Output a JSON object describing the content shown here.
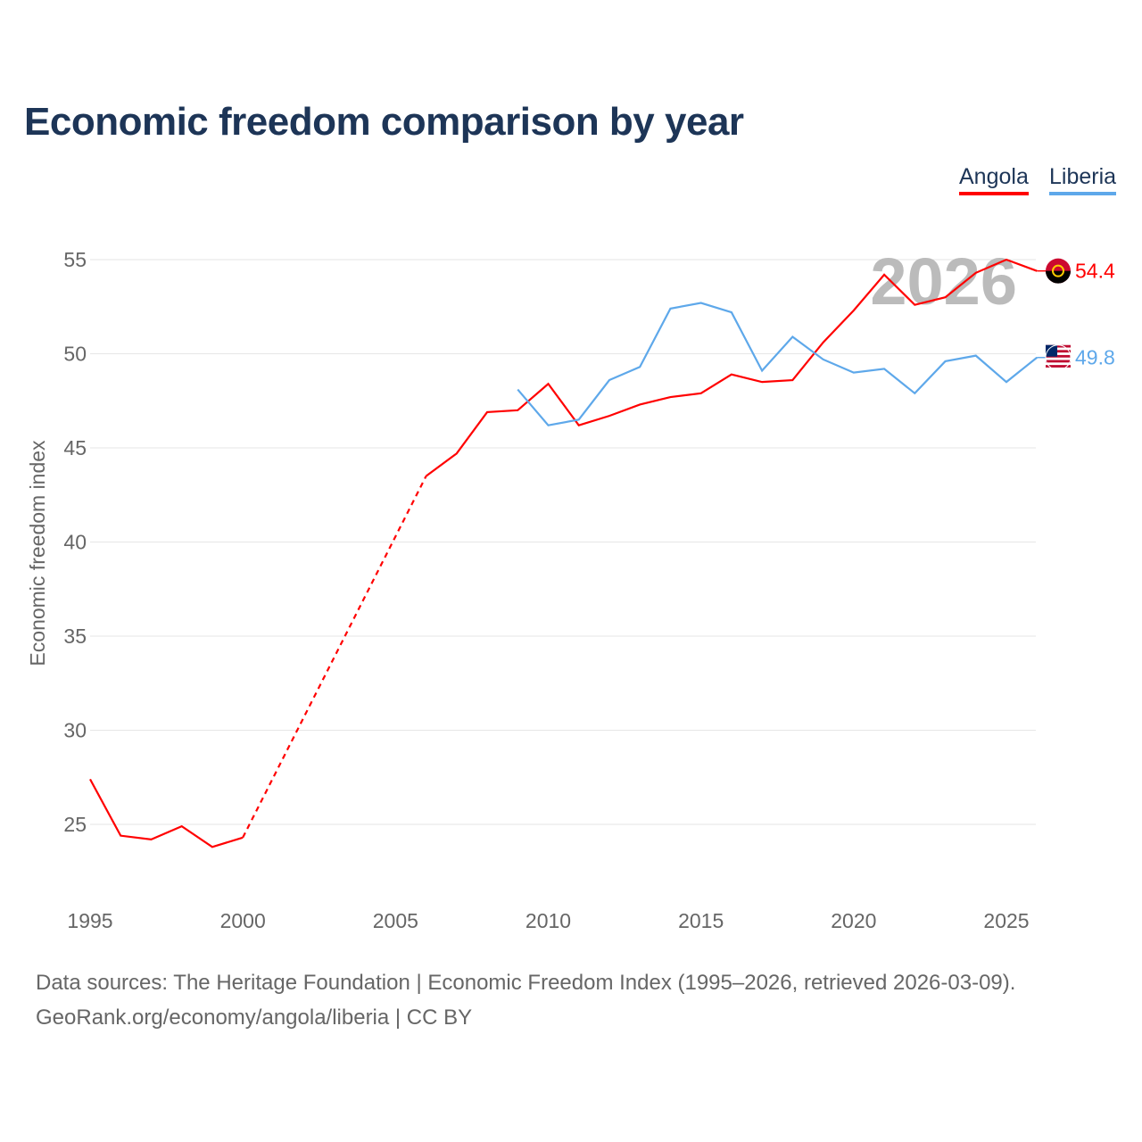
{
  "chart_data": {
    "type": "line",
    "title": "Economic freedom comparison by year",
    "ylabel": "Economic freedom index",
    "xlabel": "",
    "xlim": [
      1995,
      2026
    ],
    "ylim": [
      21.5,
      56.5
    ],
    "x_ticks": [
      1995,
      2000,
      2005,
      2010,
      2015,
      2020,
      2025
    ],
    "y_ticks": [
      25,
      30,
      35,
      40,
      45,
      50,
      55
    ],
    "grid": true,
    "legend_placement": "top-right",
    "year_watermark": "2026",
    "series": [
      {
        "name": "Angola",
        "color": "#ff0000",
        "end_label": "54.4",
        "x": [
          1995,
          1996,
          1997,
          1998,
          1999,
          2000,
          2006,
          2007,
          2008,
          2009,
          2010,
          2011,
          2012,
          2013,
          2014,
          2015,
          2016,
          2017,
          2018,
          2019,
          2020,
          2021,
          2022,
          2023,
          2024,
          2025,
          2026
        ],
        "values": [
          27.4,
          24.4,
          24.2,
          24.9,
          23.8,
          24.3,
          43.5,
          44.7,
          46.9,
          47.0,
          48.4,
          46.2,
          46.7,
          47.3,
          47.7,
          47.9,
          48.9,
          48.5,
          48.6,
          50.6,
          52.3,
          54.2,
          52.6,
          53.0,
          54.3,
          55.0,
          54.4
        ],
        "dashed_gap": [
          2000,
          2006
        ]
      },
      {
        "name": "Liberia",
        "color": "#5ea8ea",
        "end_label": "49.8",
        "x": [
          2009,
          2010,
          2011,
          2012,
          2013,
          2014,
          2015,
          2016,
          2017,
          2018,
          2019,
          2020,
          2021,
          2022,
          2023,
          2024,
          2025,
          2026
        ],
        "values": [
          48.1,
          46.2,
          46.5,
          48.6,
          49.3,
          52.4,
          52.7,
          52.2,
          49.1,
          50.9,
          49.7,
          49.0,
          49.2,
          47.9,
          49.6,
          49.9,
          48.5,
          49.8
        ]
      }
    ]
  },
  "sources": {
    "line1": "Data sources: The Heritage Foundation | Economic Freedom Index (1995–2026, retrieved 2026-03-09).",
    "line2": "GeoRank.org/economy/angola/liberia | CC BY"
  }
}
